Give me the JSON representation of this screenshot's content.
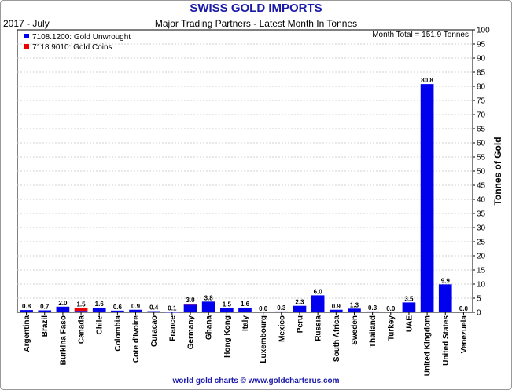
{
  "header": {
    "title": "SWISS GOLD IMPORTS",
    "date_label": "2017 - July",
    "subtitle": "Major Trading Partners - Latest Month In Tonnes"
  },
  "footer": {
    "credit": "world gold charts © www.goldchartsrus.com"
  },
  "colors": {
    "unwrought": "#0000ee",
    "coins": "#ee0000",
    "title": "#1a1aa8"
  },
  "chart_data": {
    "type": "bar",
    "stacked": true,
    "title": "SWISS GOLD IMPORTS",
    "subtitle": "Major Trading Partners - Latest Month In Tonnes",
    "period": "2017 - July",
    "annotation": "Month Total = 151.9 Tonnes",
    "ylabel": "Tonnes of Gold",
    "xlabel": "",
    "ylim": [
      0,
      100
    ],
    "yticks": [
      0,
      5,
      10,
      15,
      20,
      25,
      30,
      35,
      40,
      45,
      50,
      55,
      60,
      65,
      70,
      75,
      80,
      85,
      90,
      95,
      100
    ],
    "y_axis_side": "right",
    "legend_position": "top-left",
    "categories": [
      "Argentina",
      "Brazil",
      "Burkina Faso",
      "Canada",
      "Chile",
      "Colombia",
      "Cote d'Ivoire",
      "Curacao",
      "France",
      "Germany",
      "Ghana",
      "Hong Kong",
      "Italy",
      "Luxembourg",
      "Mexico",
      "Peru",
      "Russia",
      "South Africa",
      "Sweden",
      "Thailand",
      "Turkey",
      "UAE",
      "United Kingdom",
      "United States",
      "Venezuela"
    ],
    "totals": [
      "0.8",
      "0.7",
      "2.0",
      "1.5",
      "1.6",
      "0.6",
      "0.9",
      "0.4",
      "0.1",
      "3.0",
      "3.8",
      "1.5",
      "1.6",
      "0.0",
      "0.3",
      "2.3",
      "6.0",
      "0.9",
      "1.3",
      "0.3",
      "0.0",
      "3.5",
      "80.8",
      "9.9",
      "0.0"
    ],
    "series": [
      {
        "name": "7108.1200: Gold Unwrought",
        "color": "#0000ee",
        "values": [
          0.8,
          0.7,
          2.0,
          0.5,
          1.6,
          0.6,
          0.9,
          0.4,
          0.1,
          2.7,
          3.8,
          1.5,
          1.6,
          0.0,
          0.3,
          2.3,
          6.0,
          0.9,
          1.3,
          0.3,
          0.0,
          3.5,
          80.8,
          9.9,
          0.0
        ]
      },
      {
        "name": "7118.9010: Gold Coins",
        "color": "#ee0000",
        "values": [
          0.0,
          0.0,
          0.0,
          1.0,
          0.0,
          0.0,
          0.0,
          0.0,
          0.0,
          0.3,
          0.0,
          0.0,
          0.0,
          0.0,
          0.0,
          0.0,
          0.0,
          0.0,
          0.0,
          0.0,
          0.0,
          0.0,
          0.0,
          0.0,
          0.0
        ]
      }
    ]
  }
}
